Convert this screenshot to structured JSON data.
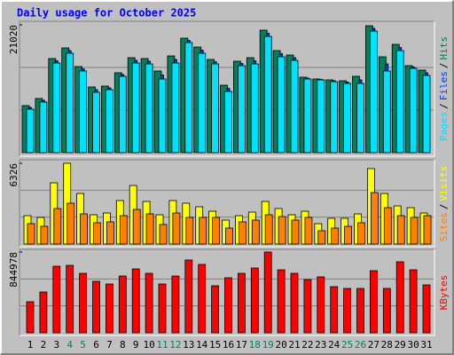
{
  "chart_data": [
    {
      "type": "bar",
      "title": "Daily usage for October 2025",
      "ylim": [
        0,
        21020
      ],
      "yticks": [
        21020
      ],
      "legend_separator": "/",
      "series": [
        {
          "name": "Pages",
          "color": "#00e0ff",
          "values": [
            7153,
            8320,
            14743,
            16349,
            13429,
            9926,
            10364,
            12553,
            14743,
            14597,
            12116,
            14743,
            18100,
            16349,
            14597,
            10072,
            14305,
            14597,
            19122,
            15765,
            15181,
            12116,
            11970,
            11678,
            11386,
            11386,
            19998,
            13429,
            16787,
            13867,
            12700
          ]
        },
        {
          "name": "Files",
          "color": "#0040ff",
          "values": [
            7445,
            8612,
            15108,
            16787,
            13794,
            10364,
            10656,
            12845,
            15181,
            15035,
            12773,
            15327,
            18465,
            16860,
            14962,
            10583,
            14670,
            15108,
            19633,
            16276,
            15619,
            12262,
            12043,
            11824,
            11605,
            11970,
            20436,
            14597,
            17298,
            14086,
            13138
          ]
        },
        {
          "name": "Hits",
          "color": "#00805c",
          "values": [
            7737,
            8904,
            15473,
            17225,
            14159,
            10802,
            10948,
            13137,
            15619,
            15473,
            13429,
            15911,
            18830,
            17370,
            15327,
            11094,
            15035,
            15619,
            20144,
            16786,
            16057,
            12408,
            12116,
            11970,
            11824,
            12554,
            20874,
            15765,
            17809,
            14305,
            13575
          ]
        }
      ]
    },
    {
      "type": "bar",
      "ylim": [
        0,
        6326
      ],
      "yticks": [
        6326
      ],
      "legend_separator": "/",
      "series": [
        {
          "name": "Sites",
          "color": "#ff8000",
          "values": [
            1599,
            1390,
            2781,
            3198,
            2364,
            1668,
            1738,
            2225,
            2711,
            2364,
            1529,
            2433,
            2086,
            2086,
            2086,
            1251,
            1738,
            1877,
            2294,
            2155,
            1877,
            2086,
            1043,
            1251,
            1390,
            1668,
            4032,
            2850,
            2225,
            2086,
            2225
          ]
        },
        {
          "name": "Visits",
          "color": "#ffff00",
          "values": [
            2225,
            2085,
            4797,
            6326,
            3962,
            2294,
            2433,
            3406,
            4588,
            3337,
            2294,
            3406,
            3198,
            2920,
            2572,
            1877,
            2225,
            2503,
            3337,
            2781,
            2294,
            2572,
            1599,
            2016,
            2016,
            2364,
            5909,
            3962,
            2989,
            2850,
            2433
          ]
        }
      ]
    },
    {
      "type": "bar",
      "ylim": [
        0,
        844978
      ],
      "yticks": [
        844978
      ],
      "categories": [
        "1",
        "2",
        "3",
        "4",
        "5",
        "6",
        "7",
        "8",
        "9",
        "10",
        "11",
        "12",
        "13",
        "14",
        "15",
        "16",
        "17",
        "18",
        "19",
        "20",
        "21",
        "22",
        "23",
        "24",
        "25",
        "26",
        "27",
        "28",
        "29",
        "30",
        "31"
      ],
      "category_colors": [
        "#000000",
        "#000000",
        "#000000",
        "#00805c",
        "#00805c",
        "#000000",
        "#000000",
        "#000000",
        "#000000",
        "#000000",
        "#00805c",
        "#00805c",
        "#000000",
        "#000000",
        "#000000",
        "#000000",
        "#000000",
        "#00805c",
        "#00805c",
        "#000000",
        "#000000",
        "#000000",
        "#000000",
        "#000000",
        "#00805c",
        "#00805c",
        "#000000",
        "#000000",
        "#000000",
        "#000000",
        "#000000"
      ],
      "series": [
        {
          "name": "KBytes",
          "color": "#ff0000",
          "values": [
            324993,
            427133,
            696413,
            705698,
            622129,
            538559,
            510703,
            594272,
            668556,
            622129,
            510703,
            594272,
            761411,
            714984,
            492132,
            575701,
            622129,
            677842,
            844978,
            659271,
            622129,
            557130,
            584987,
            482846,
            464275,
            464275,
            649985,
            464275,
            742840,
            659271,
            501417
          ]
        }
      ]
    }
  ]
}
